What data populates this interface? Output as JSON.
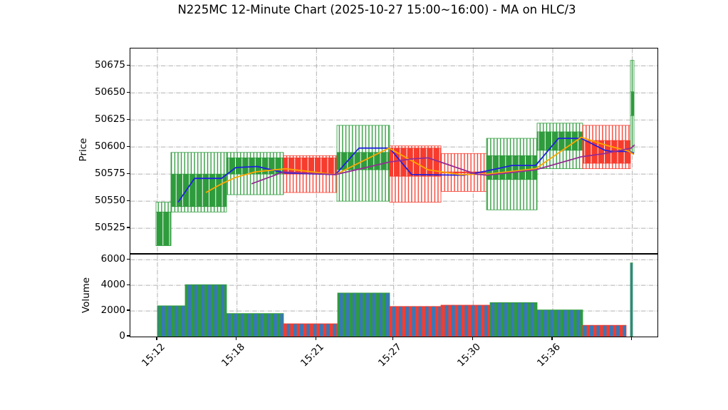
{
  "title": "N225MC 12-Minute Chart (2025-10-27 15:00~16:00) - MA on HLC/3",
  "price_panel": {
    "ylabel": "Price",
    "yticks": [
      50525,
      50550,
      50575,
      50600,
      50625,
      50650,
      50675
    ],
    "ylim": [
      50502,
      50691
    ]
  },
  "volume_panel": {
    "ylabel": "Volume",
    "yticks": [
      0,
      2000,
      4000,
      6000
    ],
    "ylim": [
      0,
      6400
    ]
  },
  "x_axis": {
    "xlim": [
      0,
      740
    ],
    "ticks": [
      {
        "pos": 38.0,
        "label": "15:12"
      },
      {
        "pos": 149.7,
        "label": "15:18"
      },
      {
        "pos": 261.3,
        "label": "15:21"
      },
      {
        "pos": 369.7,
        "label": "15:27"
      },
      {
        "pos": 481.3,
        "label": "15:30"
      },
      {
        "pos": 593.0,
        "label": "15:36"
      },
      {
        "pos": 704.7,
        "label": ""
      }
    ]
  },
  "colors": {
    "up": "#2e9b3c",
    "down": "#f73b2d",
    "volume_fill": "#3878b8",
    "ma_short": "#2020dd",
    "ma_mid": "#ffa500",
    "ma_long": "#942d94",
    "grid": "#b1b1b1"
  },
  "chart_data": {
    "type": "candlestick_volume",
    "title": "N225MC 12-Minute Chart (2025-10-27 15:00~16:00) - MA on HLC/3",
    "xlabel": "",
    "ylabel_price": "Price",
    "ylabel_volume": "Volume",
    "grid": "dashdot",
    "candles": [
      {
        "x0": 36,
        "x1": 57,
        "open": 50509,
        "high": 50549,
        "low": 50509,
        "close": 50540,
        "dir": "up"
      },
      {
        "x0": 57,
        "x1": 135,
        "open": 50545,
        "high": 50595,
        "low": 50540,
        "close": 50575,
        "dir": "up"
      },
      {
        "x0": 135,
        "x1": 215,
        "open": 50575,
        "high": 50595,
        "low": 50556,
        "close": 50590,
        "dir": "up"
      },
      {
        "x0": 215,
        "x1": 290,
        "open": 50590,
        "high": 50592,
        "low": 50558,
        "close": 50575,
        "dir": "down"
      },
      {
        "x0": 290,
        "x1": 364,
        "open": 50579,
        "high": 50620,
        "low": 50550,
        "close": 50595,
        "dir": "up"
      },
      {
        "x0": 364,
        "x1": 436,
        "open": 50599,
        "high": 50601,
        "low": 50549,
        "close": 50573,
        "dir": "down"
      },
      {
        "x0": 436,
        "x1": 500,
        "open": 50577,
        "high": 50594,
        "low": 50559,
        "close": 50576,
        "dir": "down"
      },
      {
        "x0": 500,
        "x1": 571,
        "open": 50570,
        "high": 50608,
        "low": 50542,
        "close": 50592,
        "dir": "up"
      },
      {
        "x0": 571,
        "x1": 635,
        "open": 50597,
        "high": 50622,
        "low": 50580,
        "close": 50614,
        "dir": "up"
      },
      {
        "x0": 635,
        "x1": 702,
        "open": 50606,
        "high": 50620,
        "low": 50580,
        "close": 50585,
        "dir": "down"
      },
      {
        "x0": 702,
        "x1": 707,
        "open": 50629,
        "high": 50680,
        "low": 50595,
        "close": 50651,
        "dir": "up"
      }
    ],
    "volume": [
      {
        "x0": 38,
        "x1": 77,
        "v": 2400,
        "dir": "up"
      },
      {
        "x0": 77,
        "x1": 135,
        "v": 4050,
        "dir": "up"
      },
      {
        "x0": 135,
        "x1": 215,
        "v": 1800,
        "dir": "up"
      },
      {
        "x0": 215,
        "x1": 291,
        "v": 1000,
        "dir": "down"
      },
      {
        "x0": 291,
        "x1": 364,
        "v": 3400,
        "dir": "up"
      },
      {
        "x0": 364,
        "x1": 436,
        "v": 2350,
        "dir": "down"
      },
      {
        "x0": 436,
        "x1": 505,
        "v": 2450,
        "dir": "down"
      },
      {
        "x0": 505,
        "x1": 571,
        "v": 2650,
        "dir": "up"
      },
      {
        "x0": 571,
        "x1": 635,
        "v": 2080,
        "dir": "up"
      },
      {
        "x0": 635,
        "x1": 696,
        "v": 880,
        "dir": "down"
      },
      {
        "x0": 702,
        "x1": 705,
        "v": 5750,
        "dir": "up"
      }
    ],
    "ma_lines": [
      {
        "name": "ma-short",
        "color_key": "ma_short",
        "points": [
          [
            67,
            50549
          ],
          [
            90,
            50571
          ],
          [
            128,
            50571
          ],
          [
            148,
            50581
          ],
          [
            178,
            50582
          ],
          [
            218,
            50576
          ],
          [
            288,
            50574.5
          ],
          [
            321,
            50599
          ],
          [
            364,
            50599
          ],
          [
            395,
            50574.5
          ],
          [
            468,
            50574
          ],
          [
            501,
            50578
          ],
          [
            536,
            50583
          ],
          [
            569,
            50583
          ],
          [
            601,
            50608
          ],
          [
            633,
            50608
          ],
          [
            666,
            50597
          ],
          [
            675,
            50596
          ],
          [
            701,
            50596
          ],
          [
            707,
            50594
          ]
        ]
      },
      {
        "name": "ma-mid",
        "color_key": "ma_mid",
        "points": [
          [
            106,
            50558
          ],
          [
            128,
            50566
          ],
          [
            148,
            50572
          ],
          [
            175,
            50577
          ],
          [
            218,
            50580
          ],
          [
            288,
            50574.5
          ],
          [
            363,
            50599
          ],
          [
            418,
            50579
          ],
          [
            463,
            50574.5
          ],
          [
            501,
            50575
          ],
          [
            569,
            50580
          ],
          [
            633,
            50609
          ],
          [
            666,
            50602
          ],
          [
            700,
            50596
          ],
          [
            707,
            50593
          ]
        ]
      },
      {
        "name": "ma-long",
        "color_key": "ma_long",
        "points": [
          [
            170,
            50566
          ],
          [
            215,
            50577
          ],
          [
            288,
            50574.5
          ],
          [
            363,
            50586
          ],
          [
            395,
            50589
          ],
          [
            418,
            50590
          ],
          [
            485,
            50575
          ],
          [
            501,
            50574
          ],
          [
            569,
            50579
          ],
          [
            601,
            50585
          ],
          [
            633,
            50591
          ],
          [
            666,
            50594
          ],
          [
            703,
            50599
          ],
          [
            708,
            50602
          ]
        ]
      }
    ]
  }
}
